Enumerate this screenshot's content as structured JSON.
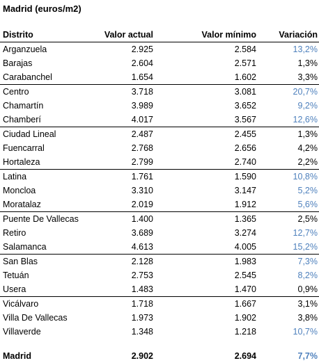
{
  "title": "Madrid (euros/m2)",
  "headers": [
    "Distrito",
    "Valor actual",
    "Valor mínimo",
    "Variación"
  ],
  "rows": [
    {
      "name": "Arganzuela",
      "actual": "2.925",
      "minimo": "2.584",
      "variacion": "13,2%",
      "highlight": true
    },
    {
      "name": "Barajas",
      "actual": "2.604",
      "minimo": "2.571",
      "variacion": "1,3%",
      "highlight": false
    },
    {
      "name": "Carabanchel",
      "actual": "1.654",
      "minimo": "1.602",
      "variacion": "3,3%",
      "highlight": false
    },
    {
      "name": "Centro",
      "actual": "3.718",
      "minimo": "3.081",
      "variacion": "20,7%",
      "highlight": true
    },
    {
      "name": "Chamartín",
      "actual": "3.989",
      "minimo": "3.652",
      "variacion": "9,2%",
      "highlight": true
    },
    {
      "name": "Chamberí",
      "actual": "4.017",
      "minimo": "3.567",
      "variacion": "12,6%",
      "highlight": true
    },
    {
      "name": "Ciudad Lineal",
      "actual": "2.487",
      "minimo": "2.455",
      "variacion": "1,3%",
      "highlight": false
    },
    {
      "name": "Fuencarral",
      "actual": "2.768",
      "minimo": "2.656",
      "variacion": "4,2%",
      "highlight": false
    },
    {
      "name": "Hortaleza",
      "actual": "2.799",
      "minimo": "2.740",
      "variacion": "2,2%",
      "highlight": false
    },
    {
      "name": "Latina",
      "actual": "1.761",
      "minimo": "1.590",
      "variacion": "10,8%",
      "highlight": true
    },
    {
      "name": "Moncloa",
      "actual": "3.310",
      "minimo": "3.147",
      "variacion": "5,2%",
      "highlight": true
    },
    {
      "name": "Moratalaz",
      "actual": "2.019",
      "minimo": "1.912",
      "variacion": "5,6%",
      "highlight": true
    },
    {
      "name": "Puente De Vallecas",
      "actual": "1.400",
      "minimo": "1.365",
      "variacion": "2,5%",
      "highlight": false
    },
    {
      "name": "Retiro",
      "actual": "3.689",
      "minimo": "3.274",
      "variacion": "12,7%",
      "highlight": true
    },
    {
      "name": "Salamanca",
      "actual": "4.613",
      "minimo": "4.005",
      "variacion": "15,2%",
      "highlight": true
    },
    {
      "name": "San Blas",
      "actual": "2.128",
      "minimo": "1.983",
      "variacion": "7,3%",
      "highlight": true
    },
    {
      "name": "Tetuán",
      "actual": "2.753",
      "minimo": "2.545",
      "variacion": "8,2%",
      "highlight": true
    },
    {
      "name": "Usera",
      "actual": "1.483",
      "minimo": "1.470",
      "variacion": "0,9%",
      "highlight": false
    },
    {
      "name": "Vicálvaro",
      "actual": "1.718",
      "minimo": "1.667",
      "variacion": "3,1%",
      "highlight": false
    },
    {
      "name": "Villa De Vallecas",
      "actual": "1.973",
      "minimo": "1.902",
      "variacion": "3,8%",
      "highlight": false
    },
    {
      "name": "Villaverde",
      "actual": "1.348",
      "minimo": "1.218",
      "variacion": "10,7%",
      "highlight": true
    }
  ],
  "group_starts": [
    3,
    6,
    9,
    12,
    15,
    18
  ],
  "total": {
    "name": "Madrid",
    "actual": "2.902",
    "minimo": "2.694",
    "variacion": "7,7%",
    "highlight": true
  },
  "colors": {
    "highlight": "#4f81bd",
    "text": "#000000"
  }
}
